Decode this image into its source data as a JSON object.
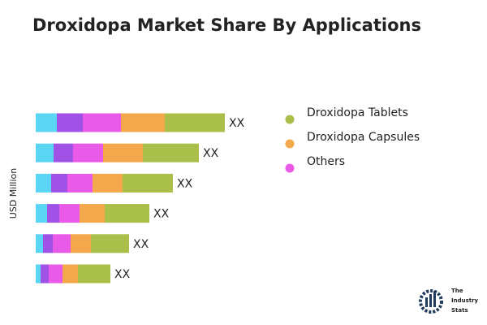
{
  "chart_data": {
    "type": "stacked-bar-horizontal",
    "title": "Droxidopa Market Share By Applications",
    "y_label": "USD Million",
    "series": [
      {
        "name": null,
        "color": "#5ad6f4",
        "values": [
          26,
          22,
          19,
          14,
          9,
          6
        ]
      },
      {
        "name": null,
        "color": "#a052e6",
        "values": [
          32,
          24,
          20,
          15,
          12,
          10
        ]
      },
      {
        "name": "Others",
        "color": "#e95ae8",
        "values": [
          47,
          37,
          31,
          25,
          22,
          17
        ]
      },
      {
        "name": "Droxidopa Capsules",
        "color": "#f4a84c",
        "values": [
          54,
          49,
          37,
          31,
          25,
          19
        ]
      },
      {
        "name": "Droxidopa Tablets",
        "color": "#a9bf4a",
        "values": [
          74,
          69,
          62,
          55,
          47,
          40
        ],
        "value_labels": [
          "XX",
          "XX",
          "XX",
          "XX",
          "XX",
          "XX"
        ]
      }
    ],
    "legend_order": [
      4,
      3,
      2
    ],
    "legend": "top-right"
  },
  "logo": {
    "lines": [
      "The",
      "Industry",
      "Stats"
    ]
  }
}
